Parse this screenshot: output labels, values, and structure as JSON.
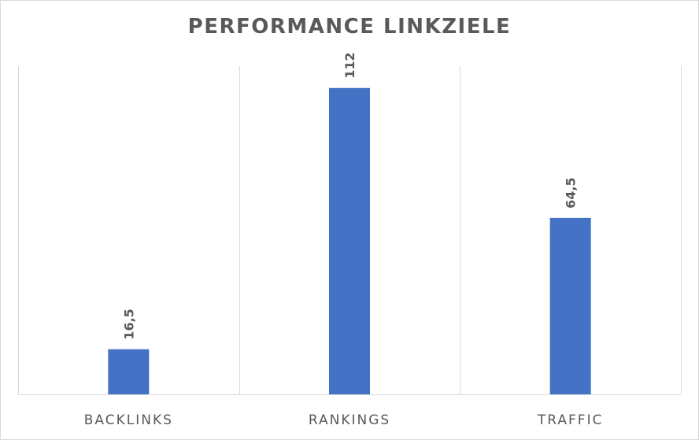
{
  "chart_data": {
    "type": "bar",
    "title": "PERFORMANCE LINKZIELE",
    "categories": [
      "BACKLINKS",
      "RANKINGS",
      "TRAFFIC"
    ],
    "values": [
      16.5,
      112,
      64.5
    ],
    "data_labels": [
      "16,5",
      "112",
      "64,5"
    ],
    "xlabel": "",
    "ylabel": "",
    "ylim": [
      0,
      120
    ],
    "grid": "vertical separators between categories",
    "legend": "none",
    "bar_color": "#4472c4",
    "gridline_color": "#d9d9d9",
    "text_color": "#595959"
  }
}
